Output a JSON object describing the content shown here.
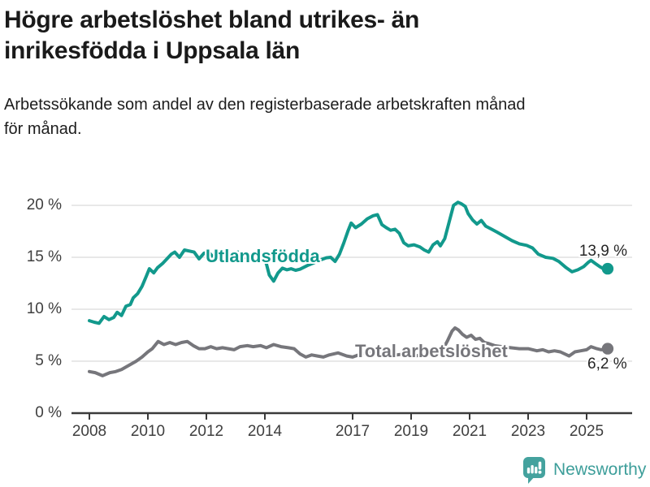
{
  "header": {
    "title_lines": [
      "Högre arbetslöshet bland utrikes- än",
      "inrikesfödda i Uppsala län"
    ],
    "subtitle_lines": [
      "Arbetssökande som andel av den registerbaserade arbetskraften månad",
      "för månad."
    ]
  },
  "footer": {
    "brand": "Newsworthy",
    "logo_icon": "bar-chart-speech-bubble-icon"
  },
  "colors": {
    "series_foreign_born": "#12998c",
    "series_total": "#76767b",
    "grid": "#d9d9d9",
    "axis": "#3a3a3a",
    "text": "#1a1a1a",
    "logo": "#44a29e"
  },
  "chart_data": {
    "type": "line",
    "title": "Högre arbetslöshet bland utrikes- än inrikesfödda i Uppsala län",
    "subtitle": "Arbetssökande som andel av den registerbaserade arbetskraften månad för månad.",
    "unit": "%",
    "grid": "horizontal-only",
    "x_axis": {
      "tick_years": [
        2008,
        2010,
        2012,
        2014,
        2017,
        2019,
        2021,
        2023,
        2025
      ],
      "labels": [
        "2008",
        "2010",
        "2012",
        "2014",
        "2017",
        "2019",
        "2021",
        "2023",
        "2025"
      ],
      "range": [
        2008,
        2025.9
      ]
    },
    "y_axis": {
      "labels": [
        "20 %",
        "15 %",
        "10 %",
        "5 %",
        "0 %"
      ],
      "label_values": [
        20,
        15,
        10,
        5,
        0
      ],
      "grid_values": [
        20,
        15,
        10,
        5
      ],
      "range": [
        0,
        20
      ]
    },
    "series": [
      {
        "id": "utlandsfodda",
        "name": "Utlandsfödda",
        "color": "#12998c",
        "end_label": "13,9 %",
        "end_value": 13.9,
        "points": [
          [
            2008.0,
            8.9
          ],
          [
            2008.17,
            8.75
          ],
          [
            2008.33,
            8.65
          ],
          [
            2008.5,
            9.3
          ],
          [
            2008.67,
            9.0
          ],
          [
            2008.83,
            9.2
          ],
          [
            2008.95,
            9.7
          ],
          [
            2009.1,
            9.4
          ],
          [
            2009.25,
            10.3
          ],
          [
            2009.4,
            10.45
          ],
          [
            2009.5,
            11.1
          ],
          [
            2009.65,
            11.5
          ],
          [
            2009.8,
            12.2
          ],
          [
            2009.95,
            13.2
          ],
          [
            2010.05,
            13.9
          ],
          [
            2010.2,
            13.5
          ],
          [
            2010.33,
            14.0
          ],
          [
            2010.5,
            14.4
          ],
          [
            2010.67,
            14.9
          ],
          [
            2010.8,
            15.3
          ],
          [
            2010.92,
            15.5
          ],
          [
            2011.08,
            15.0
          ],
          [
            2011.25,
            15.7
          ],
          [
            2011.42,
            15.6
          ],
          [
            2011.58,
            15.5
          ],
          [
            2011.75,
            14.85
          ],
          [
            2011.92,
            15.4
          ],
          [
            2012.08,
            15.5
          ],
          [
            2012.25,
            14.95
          ],
          [
            2012.42,
            15.3
          ],
          [
            2012.58,
            15.55
          ],
          [
            2012.75,
            15.1
          ],
          [
            2012.92,
            15.3
          ],
          [
            2013.08,
            15.5
          ],
          [
            2013.25,
            14.9
          ],
          [
            2013.42,
            15.3
          ],
          [
            2013.58,
            14.8
          ],
          [
            2013.75,
            15.0
          ],
          [
            2013.92,
            14.8
          ],
          [
            2014.05,
            14.4
          ],
          [
            2014.15,
            13.3
          ],
          [
            2014.3,
            12.7
          ],
          [
            2014.45,
            13.5
          ],
          [
            2014.6,
            13.95
          ],
          [
            2014.75,
            13.8
          ],
          [
            2014.9,
            13.9
          ],
          [
            2015.05,
            13.75
          ],
          [
            2015.2,
            13.85
          ],
          [
            2015.45,
            14.2
          ],
          [
            2015.7,
            14.5
          ],
          [
            2015.9,
            14.75
          ],
          [
            2016.1,
            14.95
          ],
          [
            2016.25,
            15.0
          ],
          [
            2016.4,
            14.6
          ],
          [
            2016.55,
            15.3
          ],
          [
            2016.7,
            16.4
          ],
          [
            2016.85,
            17.6
          ],
          [
            2016.95,
            18.3
          ],
          [
            2017.1,
            17.85
          ],
          [
            2017.3,
            18.2
          ],
          [
            2017.5,
            18.7
          ],
          [
            2017.7,
            19.0
          ],
          [
            2017.85,
            19.1
          ],
          [
            2018.0,
            18.15
          ],
          [
            2018.15,
            17.85
          ],
          [
            2018.3,
            17.6
          ],
          [
            2018.45,
            17.7
          ],
          [
            2018.6,
            17.3
          ],
          [
            2018.75,
            16.4
          ],
          [
            2018.9,
            16.1
          ],
          [
            2019.1,
            16.2
          ],
          [
            2019.3,
            16.0
          ],
          [
            2019.45,
            15.7
          ],
          [
            2019.6,
            15.5
          ],
          [
            2019.75,
            16.2
          ],
          [
            2019.9,
            16.5
          ],
          [
            2020.0,
            16.1
          ],
          [
            2020.15,
            16.8
          ],
          [
            2020.3,
            18.4
          ],
          [
            2020.45,
            20.0
          ],
          [
            2020.6,
            20.3
          ],
          [
            2020.72,
            20.15
          ],
          [
            2020.85,
            19.9
          ],
          [
            2020.95,
            19.2
          ],
          [
            2021.1,
            18.6
          ],
          [
            2021.25,
            18.2
          ],
          [
            2021.4,
            18.55
          ],
          [
            2021.55,
            18.0
          ],
          [
            2021.75,
            17.7
          ],
          [
            2021.95,
            17.4
          ],
          [
            2022.2,
            17.0
          ],
          [
            2022.45,
            16.6
          ],
          [
            2022.7,
            16.3
          ],
          [
            2022.95,
            16.15
          ],
          [
            2023.15,
            15.9
          ],
          [
            2023.35,
            15.3
          ],
          [
            2023.6,
            15.0
          ],
          [
            2023.85,
            14.9
          ],
          [
            2024.05,
            14.6
          ],
          [
            2024.3,
            14.0
          ],
          [
            2024.5,
            13.6
          ],
          [
            2024.7,
            13.8
          ],
          [
            2024.9,
            14.1
          ],
          [
            2025.05,
            14.5
          ],
          [
            2025.15,
            14.7
          ],
          [
            2025.3,
            14.4
          ],
          [
            2025.45,
            14.1
          ],
          [
            2025.6,
            13.85
          ],
          [
            2025.72,
            13.9
          ]
        ]
      },
      {
        "id": "total",
        "name": "Total arbetslöshet",
        "color": "#76767b",
        "end_label": "6,2 %",
        "end_value": 6.2,
        "points": [
          [
            2008.0,
            4.0
          ],
          [
            2008.2,
            3.9
          ],
          [
            2008.45,
            3.6
          ],
          [
            2008.7,
            3.9
          ],
          [
            2008.9,
            4.0
          ],
          [
            2009.1,
            4.2
          ],
          [
            2009.35,
            4.6
          ],
          [
            2009.6,
            5.0
          ],
          [
            2009.8,
            5.4
          ],
          [
            2010.0,
            5.9
          ],
          [
            2010.15,
            6.2
          ],
          [
            2010.35,
            6.9
          ],
          [
            2010.55,
            6.6
          ],
          [
            2010.75,
            6.8
          ],
          [
            2010.95,
            6.6
          ],
          [
            2011.15,
            6.8
          ],
          [
            2011.35,
            6.9
          ],
          [
            2011.55,
            6.5
          ],
          [
            2011.75,
            6.2
          ],
          [
            2011.95,
            6.2
          ],
          [
            2012.15,
            6.4
          ],
          [
            2012.35,
            6.2
          ],
          [
            2012.55,
            6.3
          ],
          [
            2012.75,
            6.2
          ],
          [
            2012.95,
            6.1
          ],
          [
            2013.15,
            6.4
          ],
          [
            2013.4,
            6.5
          ],
          [
            2013.6,
            6.4
          ],
          [
            2013.85,
            6.5
          ],
          [
            2014.05,
            6.3
          ],
          [
            2014.3,
            6.6
          ],
          [
            2014.55,
            6.4
          ],
          [
            2014.8,
            6.3
          ],
          [
            2015.0,
            6.2
          ],
          [
            2015.2,
            5.7
          ],
          [
            2015.4,
            5.4
          ],
          [
            2015.6,
            5.6
          ],
          [
            2015.8,
            5.5
          ],
          [
            2016.0,
            5.4
          ],
          [
            2016.2,
            5.6
          ],
          [
            2016.5,
            5.8
          ],
          [
            2016.8,
            5.5
          ],
          [
            2017.0,
            5.4
          ],
          [
            2017.3,
            5.7
          ],
          [
            2017.6,
            5.9
          ],
          [
            2017.9,
            5.7
          ],
          [
            2018.2,
            5.8
          ],
          [
            2018.5,
            5.6
          ],
          [
            2018.8,
            5.7
          ],
          [
            2019.1,
            5.5
          ],
          [
            2019.4,
            5.6
          ],
          [
            2019.7,
            5.5
          ],
          [
            2019.9,
            5.7
          ],
          [
            2020.1,
            6.2
          ],
          [
            2020.25,
            7.0
          ],
          [
            2020.4,
            7.9
          ],
          [
            2020.5,
            8.2
          ],
          [
            2020.62,
            8.0
          ],
          [
            2020.75,
            7.6
          ],
          [
            2020.9,
            7.3
          ],
          [
            2021.05,
            7.5
          ],
          [
            2021.2,
            7.1
          ],
          [
            2021.35,
            7.2
          ],
          [
            2021.5,
            6.8
          ],
          [
            2021.65,
            6.7
          ],
          [
            2021.85,
            6.5
          ],
          [
            2022.1,
            6.4
          ],
          [
            2022.4,
            6.3
          ],
          [
            2022.7,
            6.2
          ],
          [
            2023.0,
            6.2
          ],
          [
            2023.3,
            6.0
          ],
          [
            2023.5,
            6.1
          ],
          [
            2023.7,
            5.9
          ],
          [
            2023.9,
            6.0
          ],
          [
            2024.1,
            5.9
          ],
          [
            2024.4,
            5.5
          ],
          [
            2024.6,
            5.9
          ],
          [
            2024.8,
            6.0
          ],
          [
            2025.0,
            6.1
          ],
          [
            2025.15,
            6.4
          ],
          [
            2025.35,
            6.2
          ],
          [
            2025.5,
            6.1
          ],
          [
            2025.72,
            6.2
          ]
        ]
      }
    ]
  }
}
